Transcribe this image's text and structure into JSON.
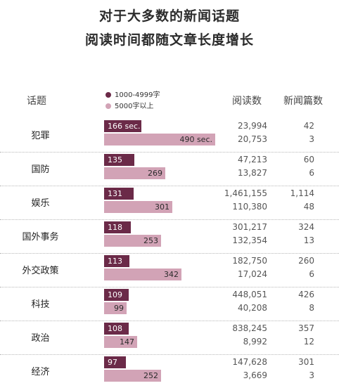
{
  "title_line1": "对于大多数的新闻话题",
  "title_line2": "阅读时间都随文章长度增长",
  "columns": {
    "topic": "话题",
    "reads": "阅读数",
    "count": "新闻篇数"
  },
  "colors": {
    "short": "#6b2a48",
    "long": "#d2a3b6"
  },
  "chart_data": {
    "type": "bar",
    "orientation": "horizontal",
    "legend": [
      "1000-4999字",
      "5000字以上"
    ],
    "categories": [
      "犯罪",
      "国防",
      "娱乐",
      "国外事务",
      "外交政策",
      "科技",
      "政治",
      "经济"
    ],
    "series": [
      {
        "name": "1000-4999字",
        "values": [
          166,
          135,
          131,
          118,
          113,
          109,
          108,
          97
        ],
        "labels": [
          "166 sec.",
          "135",
          "131",
          "118",
          "113",
          "109",
          "108",
          "97"
        ],
        "reads": [
          "23,994",
          "47,213",
          "1,461,155",
          "301,217",
          "182,750",
          "448,051",
          "838,245",
          "147,628"
        ],
        "counts": [
          "42",
          "60",
          "1,114",
          "324",
          "260",
          "426",
          "357",
          "301"
        ]
      },
      {
        "name": "5000字以上",
        "values": [
          490,
          269,
          301,
          253,
          342,
          99,
          147,
          252
        ],
        "labels": [
          "490 sec.",
          "269",
          "301",
          "253",
          "342",
          "99",
          "147",
          "252"
        ],
        "reads": [
          "20,753",
          "13,827",
          "110,380",
          "132,354",
          "17,024",
          "40,208",
          "8,992",
          "3,669"
        ],
        "counts": [
          "3",
          "6",
          "48",
          "13",
          "6",
          "8",
          "12",
          "3"
        ]
      }
    ]
  }
}
